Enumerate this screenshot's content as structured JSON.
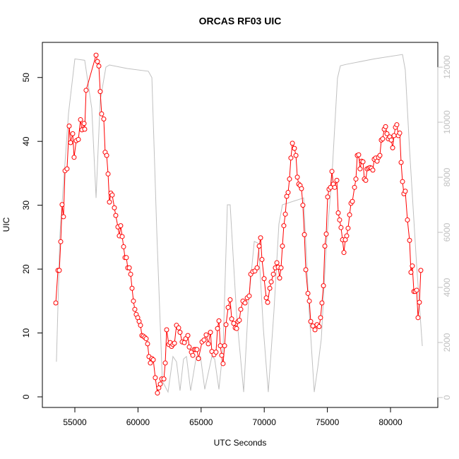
{
  "chart_data": {
    "type": "line",
    "title": "ORCAS RF03 UIC",
    "x_label": "UTC Seconds",
    "y_label": "UIC",
    "xlim": [
      52427,
      83747
    ],
    "ylim": [
      -1.66,
      55.5
    ],
    "y2lim": [
      -360,
      12900
    ],
    "xticks": [
      55000,
      60000,
      65000,
      70000,
      75000,
      80000
    ],
    "yticks": [
      0,
      10,
      20,
      30,
      40,
      50
    ],
    "y2ticks": [
      0,
      2000,
      4000,
      6000,
      8000,
      10000,
      12000
    ],
    "series": [
      {
        "color": "#c0c0c0",
        "axis": "y2",
        "marker": "none",
        "x": [
          53540,
          53820,
          54500,
          55000,
          55780,
          56340,
          56680,
          57010,
          57460,
          57740,
          59140,
          60820,
          61100,
          61490,
          61930,
          62380,
          62770,
          63050,
          63330,
          63610,
          63840,
          64170,
          64620,
          64950,
          65290,
          65850,
          66070,
          66410,
          66740,
          67080,
          67300,
          67810,
          68370,
          68760,
          69210,
          69540,
          69930,
          70320,
          70770,
          71160,
          71440,
          73120,
          73510,
          73960,
          74240,
          74520,
          74910,
          75360,
          75800,
          76030,
          76480,
          78710,
          80950,
          81170,
          81510,
          82070,
          82520
        ],
        "values": [
          1300,
          5970,
          10330,
          12300,
          12250,
          10500,
          7250,
          10800,
          12000,
          12080,
          11950,
          11850,
          11620,
          6000,
          600,
          200,
          1490,
          1300,
          250,
          1400,
          1490,
          250,
          1490,
          1490,
          300,
          1490,
          1400,
          300,
          1800,
          7000,
          7000,
          3000,
          200,
          3500,
          5670,
          5600,
          2500,
          200,
          3150,
          6300,
          7000,
          7250,
          3500,
          200,
          1100,
          2130,
          5500,
          8020,
          11600,
          12050,
          12100,
          12300,
          12460,
          11900,
          9000,
          4800,
          1870
        ]
      },
      {
        "color": "#ff0000",
        "marker": "circle",
        "x": [
          53490,
          53660,
          53770,
          53880,
          53990,
          54100,
          54220,
          54380,
          54550,
          54660,
          54830,
          54940,
          55110,
          55280,
          55450,
          55560,
          55730,
          55780,
          55890,
          56680,
          56790,
          56900,
          57010,
          57120,
          57290,
          57400,
          57520,
          57630,
          57740,
          57850,
          57960,
          58130,
          58240,
          58410,
          58520,
          58630,
          58750,
          58860,
          58970,
          59080,
          59190,
          59310,
          59420,
          59530,
          59640,
          59750,
          59860,
          59980,
          60090,
          60200,
          60310,
          60420,
          60540,
          60650,
          60760,
          60870,
          60980,
          61100,
          61210,
          61370,
          61540,
          61650,
          61770,
          61880,
          62050,
          62160,
          62270,
          62440,
          62550,
          62660,
          62770,
          62890,
          63050,
          63220,
          63330,
          63500,
          63670,
          63780,
          63950,
          64060,
          64230,
          64340,
          64450,
          64560,
          64670,
          64790,
          65070,
          65230,
          65400,
          65570,
          65740,
          65850,
          66020,
          66180,
          66300,
          66410,
          66520,
          66630,
          66740,
          66860,
          66970,
          67140,
          67300,
          67420,
          67580,
          67700,
          67810,
          67920,
          68030,
          68140,
          68310,
          68480,
          68650,
          68810,
          68930,
          69090,
          69260,
          69430,
          69600,
          69710,
          69820,
          69990,
          70160,
          70270,
          70440,
          70550,
          70720,
          70880,
          71000,
          71110,
          71220,
          71330,
          71440,
          71550,
          71670,
          71780,
          71890,
          72000,
          72110,
          72230,
          72390,
          72510,
          72620,
          72730,
          72840,
          72950,
          73060,
          73180,
          73290,
          73460,
          73570,
          73680,
          73850,
          74020,
          74180,
          74350,
          74460,
          74570,
          74690,
          74800,
          74910,
          75020,
          75130,
          75250,
          75360,
          75470,
          75580,
          75750,
          75860,
          75970,
          76080,
          76200,
          76310,
          76420,
          76530,
          76640,
          76760,
          76870,
          76980,
          77150,
          77260,
          77370,
          77480,
          77590,
          77710,
          77820,
          77930,
          78040,
          78150,
          78270,
          78380,
          78490,
          78600,
          78710,
          78830,
          78940,
          79050,
          79160,
          79270,
          79380,
          79500,
          79610,
          79720,
          79830,
          79940,
          80060,
          80170,
          80280,
          80390,
          80500,
          80620,
          80730,
          80840,
          80950,
          81060,
          81170,
          81340,
          81510,
          81620,
          81730,
          81850,
          81960,
          82070,
          82180,
          82290,
          82400
        ],
        "values": [
          14.7,
          19.8,
          19.8,
          24.3,
          30.1,
          28.2,
          35.4,
          35.7,
          42.4,
          39.8,
          41.2,
          37.5,
          40.1,
          40.3,
          43.4,
          41.8,
          42.8,
          41.9,
          48.0,
          53.5,
          52.5,
          51.8,
          47.8,
          44.3,
          43.5,
          38.3,
          37.8,
          34.9,
          30.5,
          31.9,
          31.6,
          29.6,
          28.4,
          26.6,
          25.2,
          26.8,
          25.1,
          23.5,
          21.8,
          21.8,
          20.2,
          20.2,
          19.2,
          17.0,
          15.0,
          13.7,
          12.9,
          12.4,
          11.8,
          11.2,
          9.6,
          9.5,
          9.3,
          9.1,
          8.3,
          6.3,
          5.3,
          6.0,
          5.8,
          3.0,
          0.6,
          1.4,
          2.0,
          2.8,
          2.8,
          5.3,
          10.5,
          8.2,
          8.5,
          7.9,
          8.2,
          8.4,
          11.2,
          10.8,
          10.1,
          8.6,
          8.5,
          9.1,
          9.6,
          7.8,
          7.0,
          6.5,
          7.4,
          7.4,
          7.4,
          6.0,
          8.6,
          8.9,
          9.7,
          8.3,
          10.1,
          7.1,
          6.6,
          7.0,
          10.7,
          11.9,
          8.0,
          6.5,
          5.2,
          8.0,
          11.3,
          14.0,
          15.2,
          12.2,
          11.5,
          10.8,
          10.7,
          11.8,
          12.0,
          13.7,
          15.0,
          14.7,
          15.5,
          15.8,
          19.2,
          19.6,
          19.7,
          20.2,
          23.6,
          24.9,
          21.5,
          18.5,
          15.5,
          14.8,
          17.0,
          18.0,
          19.2,
          20.2,
          21.0,
          20.3,
          18.6,
          20.2,
          23.6,
          26.8,
          28.6,
          31.4,
          32.0,
          34.1,
          37.4,
          39.7,
          38.9,
          37.8,
          34.4,
          33.3,
          33.1,
          32.6,
          30.0,
          25.4,
          19.9,
          16.2,
          15.0,
          11.8,
          11.1,
          10.5,
          11.3,
          11.0,
          12.4,
          14.7,
          17.4,
          23.6,
          25.5,
          31.3,
          32.5,
          32.8,
          35.3,
          33.3,
          32.8,
          33.9,
          28.8,
          27.7,
          26.5,
          24.6,
          22.6,
          24.6,
          25.2,
          26.4,
          28.5,
          30.3,
          30.6,
          32.8,
          34.1,
          37.8,
          37.9,
          35.7,
          36.9,
          36.8,
          34.1,
          33.9,
          35.7,
          35.8,
          35.9,
          35.8,
          35.5,
          37.2,
          37.4,
          36.9,
          37.5,
          37.8,
          40.2,
          40.4,
          41.9,
          42.3,
          41.2,
          40.4,
          40.7,
          40.2,
          39.0,
          40.9,
          42.2,
          42.6,
          40.9,
          41.3,
          36.7,
          33.7,
          31.8,
          32.2,
          27.7,
          24.5,
          19.5,
          20.5,
          16.5,
          16.5,
          16.7,
          12.4,
          14.8,
          19.8
        ]
      }
    ]
  }
}
